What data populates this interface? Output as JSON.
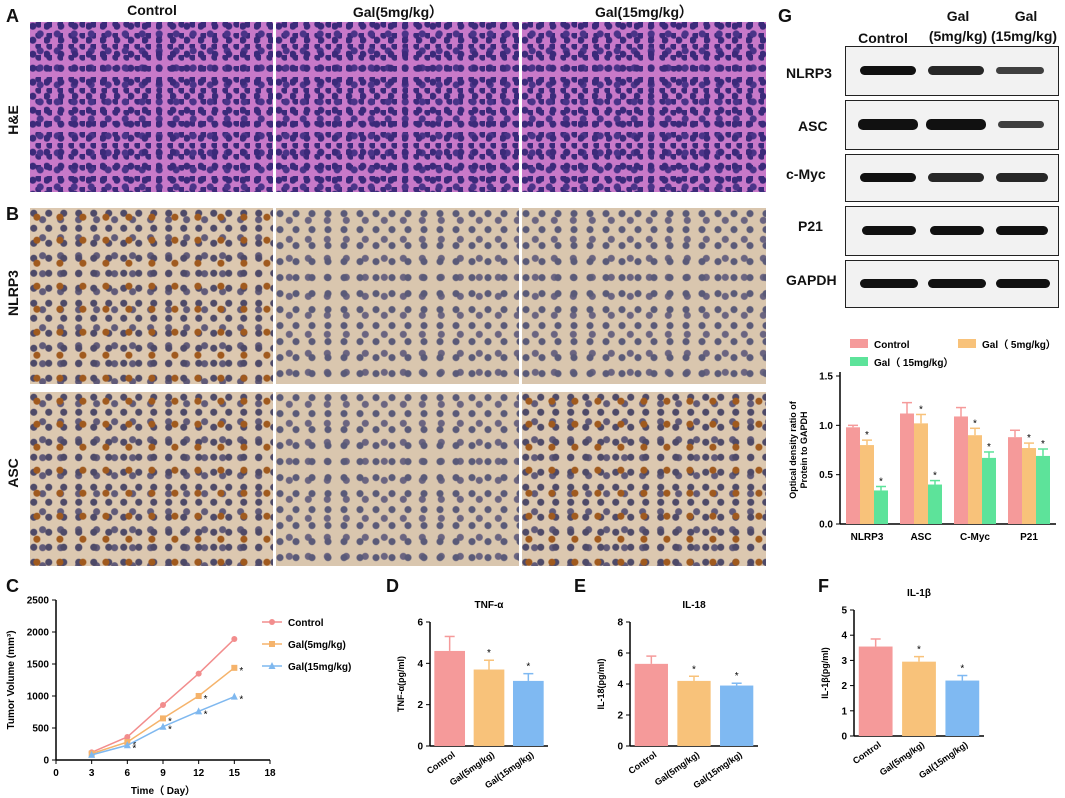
{
  "panels": {
    "A": "A",
    "B": "B",
    "C": "C",
    "D": "D",
    "E": "E",
    "F": "F",
    "G": "G"
  },
  "histology": {
    "columns": [
      "Control",
      "Gal(5mg/kg）",
      "Gal(15mg/kg）"
    ],
    "rows": [
      "H&E",
      "NLRP3",
      "ASC"
    ]
  },
  "western": {
    "col_control": "Control",
    "col_gal5_line1": "Gal",
    "col_gal5_line2": "(5mg/kg)",
    "col_gal15_line1": "Gal",
    "col_gal15_line2": "(15mg/kg)",
    "rows": [
      "NLRP3",
      "ASC",
      "c-Myc",
      "P21",
      "GAPDH"
    ],
    "band_intensity": [
      [
        1.0,
        0.9,
        0.5
      ],
      [
        1.0,
        0.95,
        0.45
      ],
      [
        1.0,
        0.85,
        0.8
      ],
      [
        1.0,
        0.95,
        0.9
      ],
      [
        1.0,
        1.0,
        1.0
      ]
    ]
  },
  "colors": {
    "control": "#f59a9a",
    "gal5": "#f8c27a",
    "gal15": "#5de39a",
    "gal15_blue": "#7fb9f2",
    "line_control": "#f28d8d",
    "line_gal5": "#f5b36b",
    "line_gal15": "#7fb8ef"
  },
  "chart_data": [
    {
      "id": "G-bar",
      "type": "bar",
      "categories": [
        "NLRP3",
        "ASC",
        "C-Myc",
        "P21"
      ],
      "series": [
        {
          "name": "Control",
          "values": [
            0.98,
            1.12,
            1.09,
            0.88
          ],
          "errors": [
            0.02,
            0.11,
            0.09,
            0.07
          ]
        },
        {
          "name": "Gal（ 5mg/kg）",
          "values": [
            0.8,
            1.02,
            0.9,
            0.77
          ],
          "errors": [
            0.05,
            0.09,
            0.07,
            0.05
          ]
        },
        {
          "name": "Gal（ 15mg/kg）",
          "values": [
            0.34,
            0.4,
            0.67,
            0.69
          ],
          "errors": [
            0.04,
            0.04,
            0.06,
            0.07
          ]
        }
      ],
      "ylabel_line1": "Optical density ratio of",
      "ylabel_line2": "Protein to GAPDH",
      "ylim": [
        0,
        1.5
      ],
      "yticks": [
        "0.0",
        "0.5",
        "1.0",
        "1.5"
      ],
      "significance": "*",
      "legend": "top"
    },
    {
      "id": "C-line",
      "type": "line",
      "x": [
        3,
        6,
        9,
        12,
        15
      ],
      "series": [
        {
          "name": "Control",
          "values": [
            120,
            360,
            860,
            1350,
            1890
          ]
        },
        {
          "name": "Gal(5mg/kg)",
          "values": [
            100,
            280,
            650,
            1000,
            1440
          ]
        },
        {
          "name": "Gal(15mg/kg)",
          "values": [
            80,
            230,
            520,
            760,
            990
          ]
        }
      ],
      "xlabel": "Time（ Day）",
      "ylabel": "Tumor Volume (mm³)",
      "xlim": [
        0,
        18
      ],
      "ylim": [
        0,
        2500
      ],
      "xticks": [
        "0",
        "3",
        "6",
        "9",
        "12",
        "15",
        "18"
      ],
      "yticks": [
        "0",
        "500",
        "1000",
        "1500",
        "2000",
        "2500"
      ],
      "significance": "*",
      "legend": "right"
    },
    {
      "id": "D-bar",
      "type": "bar",
      "title": "TNF-α",
      "categories": [
        "Control",
        "Gal(5mg/kg)",
        "Gal(15mg/kg)"
      ],
      "values": [
        4.6,
        3.7,
        3.15
      ],
      "errors": [
        0.7,
        0.45,
        0.35
      ],
      "ylabel": "TNF-α(pg/ml)",
      "ylim": [
        0,
        6
      ],
      "yticks": [
        "0",
        "2",
        "4",
        "6"
      ],
      "significance": "*"
    },
    {
      "id": "E-bar",
      "type": "bar",
      "title": "IL-18",
      "categories": [
        "Control",
        "Gal(5mg/kg)",
        "Gal(15mg/kg)"
      ],
      "values": [
        5.3,
        4.2,
        3.9
      ],
      "errors": [
        0.5,
        0.3,
        0.15
      ],
      "ylabel": "IL-18(pg/ml)",
      "ylim": [
        0,
        8
      ],
      "yticks": [
        "0",
        "2",
        "4",
        "6",
        "8"
      ],
      "significance": "*"
    },
    {
      "id": "F-bar",
      "type": "bar",
      "title": "IL-1β",
      "categories": [
        "Control",
        "Gal(5mg/kg)",
        "Gal(15mg/kg)"
      ],
      "values": [
        3.55,
        2.95,
        2.2
      ],
      "errors": [
        0.3,
        0.2,
        0.2
      ],
      "ylabel": "IL-1β(pg/ml)",
      "ylim": [
        0,
        5
      ],
      "yticks": [
        "0",
        "1",
        "2",
        "3",
        "4",
        "5"
      ],
      "significance": "*"
    }
  ]
}
